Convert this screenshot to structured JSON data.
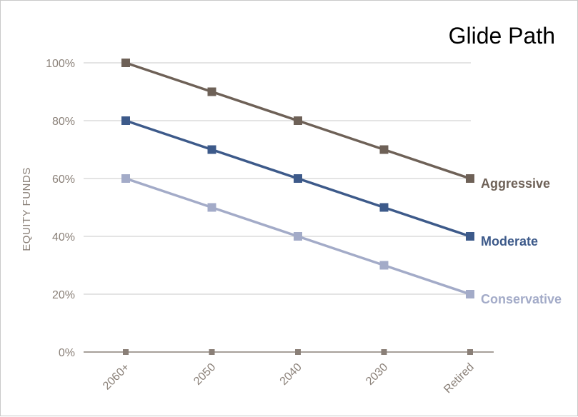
{
  "chart_data": {
    "type": "line",
    "title": "Glide Path",
    "xlabel": "",
    "ylabel": "EQUITY FUNDS",
    "categories": [
      "2060+",
      "2050",
      "2040",
      "2030",
      "Retired"
    ],
    "y_ticks": [
      "0%",
      "20%",
      "40%",
      "60%",
      "80%",
      "100%"
    ],
    "ylim": [
      0,
      100
    ],
    "grid": "horizontal",
    "legend": "inline-right",
    "series": [
      {
        "name": "Aggressive",
        "values": [
          100,
          90,
          80,
          70,
          60
        ],
        "color": "#6e6157"
      },
      {
        "name": "Moderate",
        "values": [
          80,
          70,
          60,
          50,
          40
        ],
        "color": "#3d5a8a"
      },
      {
        "name": "Conservative",
        "values": [
          60,
          50,
          40,
          30,
          20
        ],
        "color": "#a3abc8"
      }
    ]
  }
}
